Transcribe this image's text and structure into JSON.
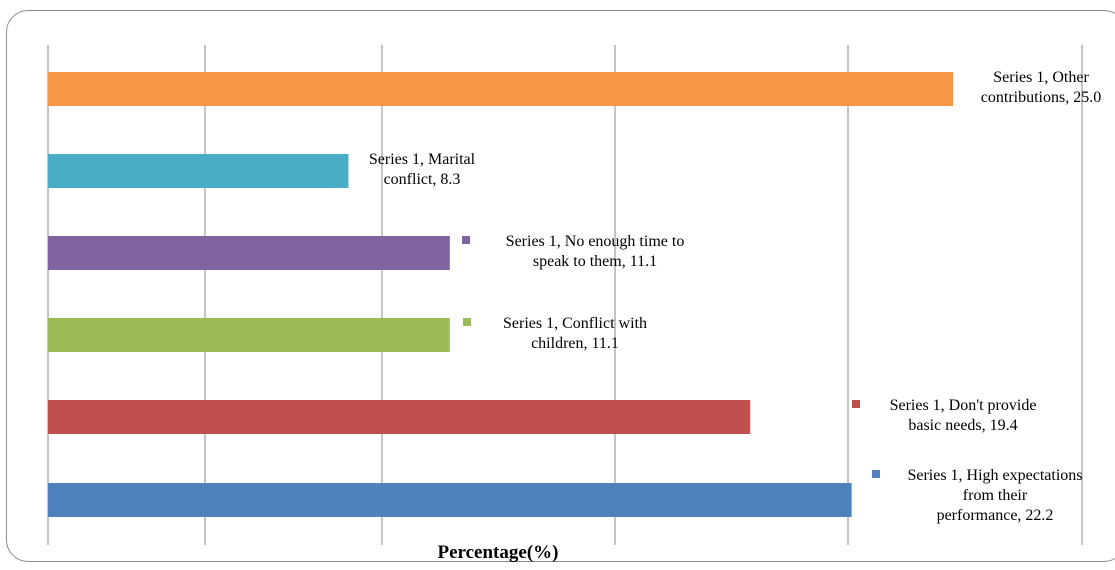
{
  "chart_data": {
    "type": "bar",
    "orientation": "horizontal",
    "series": [
      {
        "name": "Series 1",
        "categories": [
          "High expectations from their performance",
          "Don't provide basic needs",
          "Conflict with children",
          "No enough time to speak to them",
          "Marital conflict",
          "Other contributions"
        ],
        "values": [
          22.2,
          19.4,
          11.1,
          11.1,
          8.3,
          25.0
        ],
        "colors": [
          "#4f81bd",
          "#c0504d",
          "#9bbb59",
          "#8064a2",
          "#4bacc6",
          "#f79646"
        ]
      }
    ],
    "data_labels": [
      [
        "Series 1, High expectations",
        "from their",
        "performance, 22.2"
      ],
      [
        "Series 1, Don't provide",
        "basic needs, 19.4"
      ],
      [
        "Series 1, Conflict with",
        "children, 11.1"
      ],
      [
        "Series 1, No enough time to",
        "speak to them, 11.1"
      ],
      [
        "Series 1, Marital",
        "conflict, 8.3"
      ],
      [
        "Series 1, Other",
        "contributions, 25.0"
      ]
    ],
    "xlabel": "Percentage(%)",
    "xlim": [
      0,
      25
    ],
    "grid": true,
    "legend": "none"
  }
}
